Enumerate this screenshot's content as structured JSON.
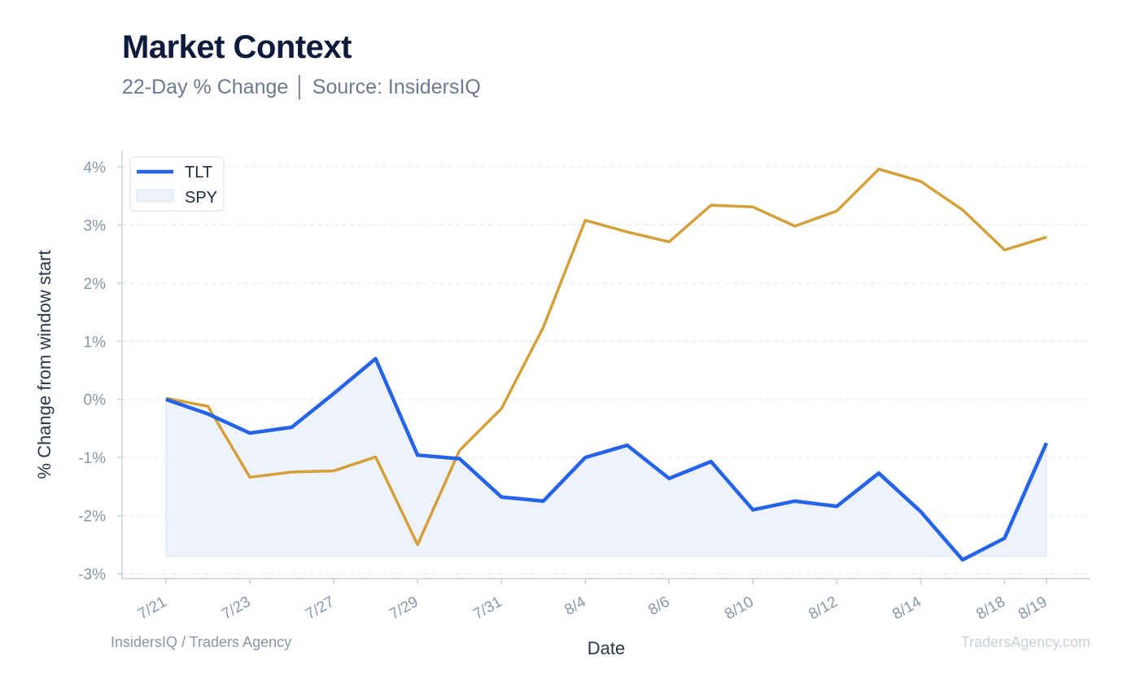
{
  "header": {
    "title": "Market Context",
    "subtitle": "22-Day % Change │ Source: InsidersIQ"
  },
  "footer": {
    "left": "InsidersIQ / Traders Agency",
    "right": "TradersAgency.com"
  },
  "colors": {
    "tlt": "#2563eb",
    "spy": "#d4a03a",
    "fill": "#eef2fb",
    "grid": "#e5e9f0",
    "axis": "#c9d1de"
  },
  "chart_data": {
    "type": "line",
    "xlabel": "Date",
    "ylabel": "% Change from window start",
    "ylim": [
      -3.2,
      4.3
    ],
    "yticks": [
      -3,
      -2,
      -1,
      0,
      1,
      2,
      3,
      4
    ],
    "ytick_labels": [
      "-3%",
      "-2%",
      "-1%",
      "0%",
      "1%",
      "2%",
      "3%",
      "4%"
    ],
    "x_tick_labels": [
      "7/21",
      "7/23",
      "7/27",
      "7/29",
      "7/31",
      "8/4",
      "8/6",
      "8/10",
      "8/12",
      "8/14",
      "8/18",
      "8/19"
    ],
    "x_tick_index": [
      0,
      2,
      4,
      6,
      8,
      10,
      12,
      14,
      16,
      18,
      20,
      21
    ],
    "grid": true,
    "legend_position": "top-left",
    "series": [
      {
        "name": "TLT",
        "style": "line",
        "values": [
          0.0,
          -0.25,
          -0.58,
          -0.48,
          0.1,
          0.7,
          -0.96,
          -1.02,
          -1.68,
          -1.75,
          -1.0,
          -0.79,
          -1.36,
          -1.07,
          -1.9,
          -1.75,
          -1.84,
          -1.27,
          -1.93,
          -2.76,
          -2.39,
          -0.75
        ]
      },
      {
        "name": "SPY",
        "style": "area",
        "values": [
          0.02,
          -0.12,
          -1.34,
          -1.25,
          -1.23,
          -0.99,
          -2.5,
          -0.88,
          -0.16,
          1.24,
          3.08,
          2.88,
          2.71,
          3.34,
          3.31,
          2.98,
          3.24,
          3.96,
          3.75,
          3.26,
          2.57,
          2.79
        ]
      }
    ],
    "fill_baseline": -2.7
  }
}
